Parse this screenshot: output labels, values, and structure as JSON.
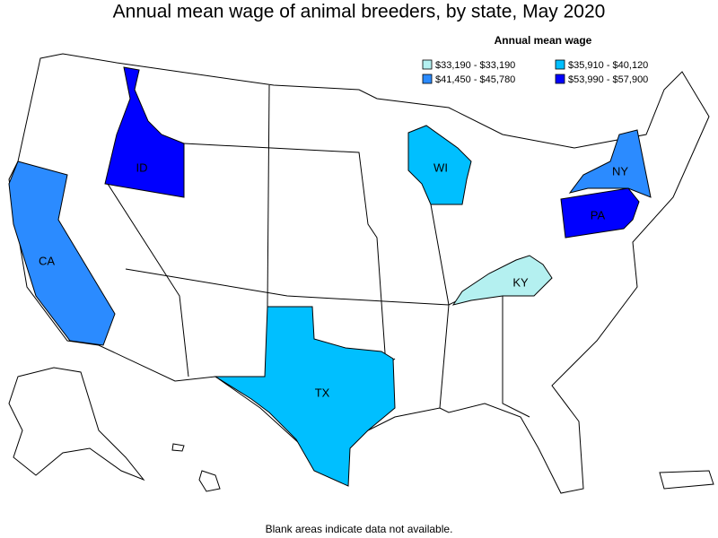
{
  "title": "Annual mean wage of animal breeders, by state, May 2020",
  "legend": {
    "title": "Annual mean wage",
    "items": [
      {
        "label": "$33,190 - $33,190",
        "color": "#b4f0f0"
      },
      {
        "label": "$35,910 - $40,120",
        "color": "#00bfff"
      },
      {
        "label": "$41,450 - $45,780",
        "color": "#2b8bff"
      },
      {
        "label": "$53,990 - $57,900",
        "color": "#0000ff"
      }
    ]
  },
  "states": [
    {
      "label": "ID",
      "color": "#0000ff"
    },
    {
      "label": "CA",
      "color": "#2b8bff"
    },
    {
      "label": "WI",
      "color": "#00bfff"
    },
    {
      "label": "NY",
      "color": "#2b8bff"
    },
    {
      "label": "PA",
      "color": "#0000ff"
    },
    {
      "label": "KY",
      "color": "#b4f0f0"
    },
    {
      "label": "TX",
      "color": "#00bfff"
    }
  ],
  "footnote": "Blank areas indicate data not available."
}
